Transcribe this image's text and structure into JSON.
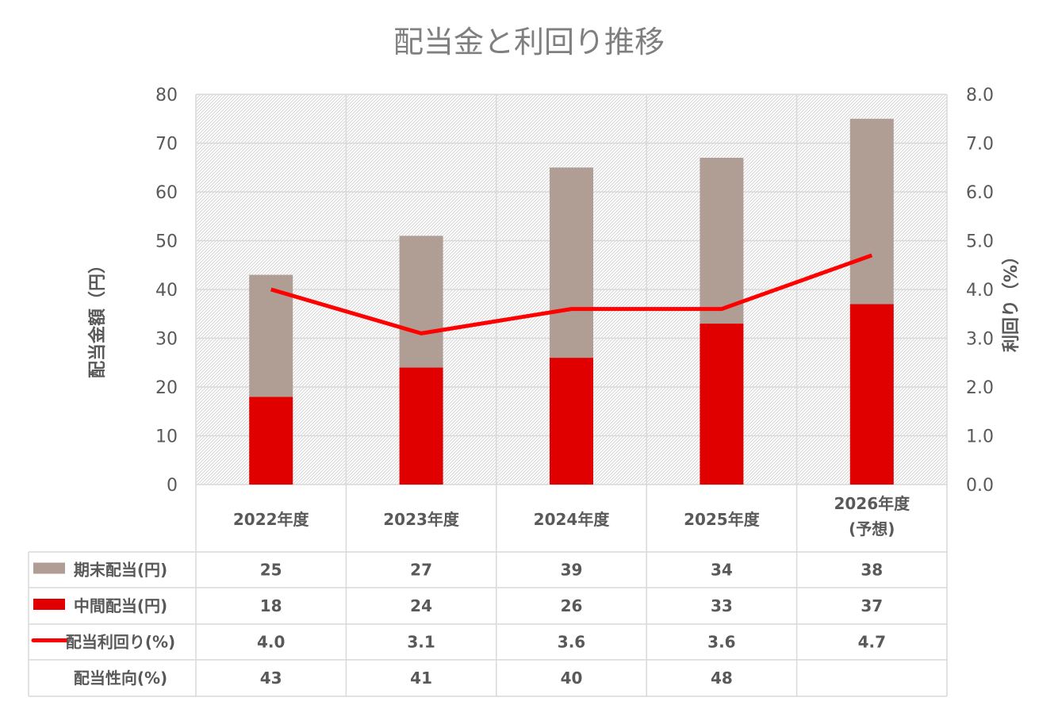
{
  "chart_data": {
    "type": "bar",
    "title": "配当金と利回り推移",
    "ylabel": "配当金額（円）",
    "y2label": "利回り（%）",
    "ylim": [
      0,
      80
    ],
    "y2lim": [
      0,
      8
    ],
    "yticks": [
      "0",
      "10",
      "20",
      "30",
      "40",
      "50",
      "60",
      "70",
      "80"
    ],
    "y2ticks": [
      "0.0",
      "1.0",
      "2.0",
      "3.0",
      "4.0",
      "5.0",
      "6.0",
      "7.0",
      "8.0"
    ],
    "grid": true,
    "categories": [
      [
        "2022年度"
      ],
      [
        "2023年度"
      ],
      [
        "2024年度"
      ],
      [
        "2025年度"
      ],
      [
        "2026年度",
        "(予想)"
      ]
    ],
    "series": [
      {
        "name": "中間配当(円)",
        "kind": "bar",
        "color": "#e00000",
        "values": [
          18,
          24,
          26,
          33,
          37
        ]
      },
      {
        "name": "期末配当(円)",
        "kind": "bar",
        "color": "#b09e95",
        "values": [
          25,
          27,
          39,
          34,
          38
        ]
      },
      {
        "name": "配当利回り(%)",
        "kind": "line",
        "axis": "right",
        "color": "#ff0000",
        "values": [
          4.0,
          3.1,
          3.6,
          3.6,
          4.7
        ]
      }
    ],
    "table": [
      {
        "label": "期末配当(円)",
        "legend": "bar",
        "color": "#b09e95",
        "cells": [
          "25",
          "27",
          "39",
          "34",
          "38"
        ]
      },
      {
        "label": "中間配当(円)",
        "legend": "bar",
        "color": "#e00000",
        "cells": [
          "18",
          "24",
          "26",
          "33",
          "37"
        ]
      },
      {
        "label": "配当利回り(%)",
        "legend": "line",
        "color": "#ff0000",
        "cells": [
          "4.0",
          "3.1",
          "3.6",
          "3.6",
          "4.7"
        ]
      },
      {
        "label": "配当性向(%)",
        "legend": "none",
        "cells": [
          "43",
          "41",
          "40",
          "48",
          ""
        ]
      }
    ]
  }
}
